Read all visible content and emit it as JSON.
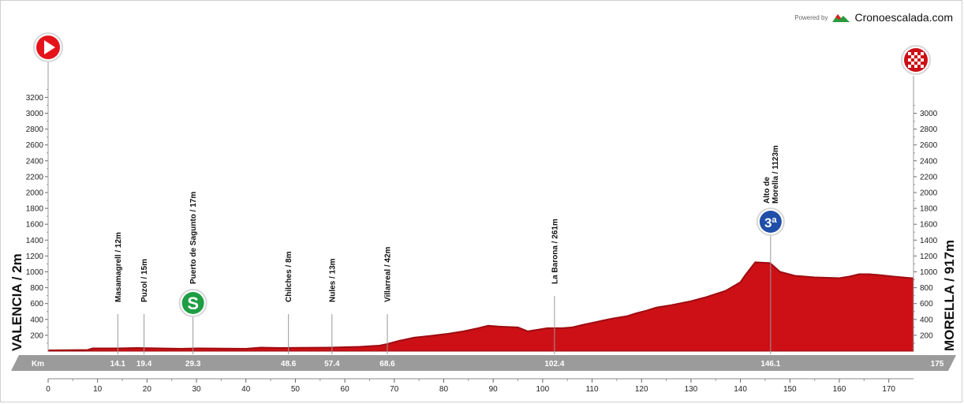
{
  "branding": {
    "powered_by": "Powered by",
    "site_name": "Cronoescalada.com"
  },
  "colors": {
    "profile": "#cc1016",
    "profile_dark": "#9e0c10",
    "band": "#9b9b9b",
    "start": "#e5141b",
    "sprint": "#1e9e43",
    "kom": "#1f4fa8",
    "finish": "#cc1016"
  },
  "start_label": "VALENCIA / 2m",
  "finish_label": "MORELLA / 917m",
  "km_label": "Km",
  "chart_data": {
    "type": "area",
    "title": "",
    "xlabel": "",
    "ylabel": "",
    "xlim": [
      0,
      175
    ],
    "ylim_left": [
      0,
      3300
    ],
    "ylim_right": [
      0,
      3150
    ],
    "x_ticks": [
      0,
      10,
      20,
      30,
      40,
      50,
      60,
      70,
      80,
      90,
      100,
      110,
      120,
      130,
      140,
      150,
      160,
      170
    ],
    "y_ticks_left": [
      200,
      400,
      600,
      800,
      1000,
      1200,
      1400,
      1600,
      1800,
      2000,
      2200,
      2400,
      2600,
      2800,
      3000,
      3200
    ],
    "y_ticks_right": [
      200,
      400,
      600,
      800,
      1000,
      1200,
      1400,
      1600,
      1800,
      2000,
      2200,
      2400,
      2600,
      2800,
      3000
    ],
    "profile": {
      "x": [
        0,
        8,
        9,
        14,
        18,
        27,
        30,
        40,
        43,
        47,
        57,
        63,
        67,
        68.6,
        71,
        74,
        77,
        81,
        84,
        87,
        89,
        91,
        95,
        97,
        101,
        104,
        106,
        108,
        111,
        114,
        117,
        119,
        121,
        123,
        126,
        130,
        133,
        137,
        140,
        141,
        143,
        146,
        148,
        151,
        155,
        160,
        162,
        164,
        166,
        168,
        171,
        175
      ],
      "y": [
        10,
        15,
        35,
        35,
        40,
        30,
        35,
        30,
        45,
        40,
        45,
        55,
        70,
        90,
        130,
        170,
        190,
        220,
        250,
        290,
        320,
        310,
        300,
        250,
        290,
        290,
        300,
        330,
        370,
        410,
        440,
        480,
        510,
        550,
        580,
        630,
        680,
        760,
        870,
        960,
        1120,
        1110,
        1000,
        950,
        930,
        920,
        940,
        970,
        970,
        960,
        940,
        917
      ]
    },
    "points": [
      {
        "km": 14.1,
        "km_label": "14.1",
        "label": "Masamagrell / 12m",
        "marker": ""
      },
      {
        "km": 19.4,
        "km_label": "19.4",
        "label": "Puzol / 15m",
        "marker": ""
      },
      {
        "km": 29.3,
        "km_label": "29.3",
        "label": "Puerto de Sagunto / 17m",
        "marker": "S"
      },
      {
        "km": 48.6,
        "km_label": "48.6",
        "label": "Chilches / 8m",
        "marker": ""
      },
      {
        "km": 57.4,
        "km_label": "57.4",
        "label": "Nules / 13m",
        "marker": ""
      },
      {
        "km": 68.6,
        "km_label": "68.6",
        "label": "Villarreal / 42m",
        "marker": ""
      },
      {
        "km": 102.4,
        "km_label": "102.4",
        "label": "La Barona / 261m",
        "marker": ""
      },
      {
        "km": 146.1,
        "km_label": "146.1",
        "label_lines": [
          "Alto de",
          "Morella / 1123m"
        ],
        "label": "Alto de Morella / 1123m",
        "marker": "3ª"
      }
    ],
    "finish_km_label": "175"
  }
}
